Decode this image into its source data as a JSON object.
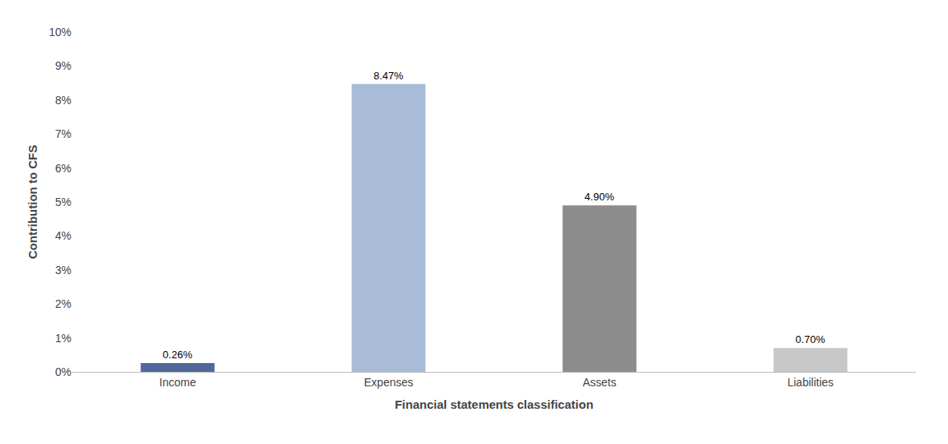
{
  "chart_data": {
    "type": "bar",
    "xlabel": "Financial statements classification",
    "ylabel": "Contribution to CFS",
    "categories": [
      "Income",
      "Expenses",
      "Assets",
      "Liabilities"
    ],
    "values": [
      0.26,
      8.47,
      4.9,
      0.7
    ],
    "value_labels": [
      "0.26%",
      "8.47%",
      "4.90%",
      "0.70%"
    ],
    "data_labels": true,
    "colors": [
      "#4f6899",
      "#a8bcd8",
      "#8c8c8c",
      "#c7c7c7"
    ],
    "ylim": [
      0,
      10
    ],
    "yticks": [
      {
        "value": 0,
        "label": "0%"
      },
      {
        "value": 1,
        "label": "1%"
      },
      {
        "value": 2,
        "label": "2%"
      },
      {
        "value": 3,
        "label": "3%"
      },
      {
        "value": 4,
        "label": "4%"
      },
      {
        "value": 5,
        "label": "5%"
      },
      {
        "value": 6,
        "label": "6%"
      },
      {
        "value": 7,
        "label": "7%"
      },
      {
        "value": 8,
        "label": "8%"
      },
      {
        "value": 9,
        "label": "9%"
      },
      {
        "value": 10,
        "label": "10%"
      }
    ],
    "grid": false
  }
}
